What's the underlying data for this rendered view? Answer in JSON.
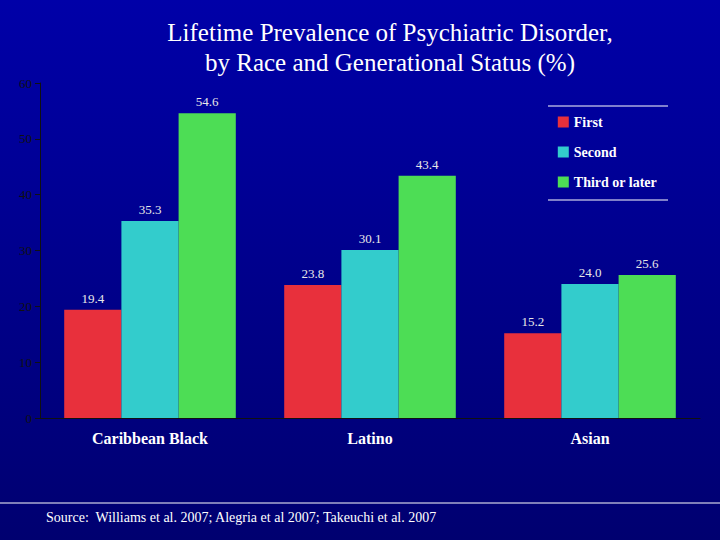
{
  "chart_data": {
    "type": "bar",
    "title": "Lifetime Prevalence of Psychiatric Disorder,\nby Race and Generational Status (%)",
    "source": "Source:  Williams et al. 2007; Alegria et al 2007; Takeuchi et al. 2007",
    "categories": [
      "Caribbean Black",
      "Latino",
      "Asian"
    ],
    "series": [
      {
        "name": "First",
        "color": "#e8303c",
        "values": [
          19.4,
          23.8,
          15.2
        ]
      },
      {
        "name": "Second",
        "color": "#33cccc",
        "values": [
          35.3,
          30.1,
          24.0
        ],
        "value_labels": [
          "35.3",
          "30.1",
          "24.0"
        ]
      },
      {
        "name": "Third or later",
        "color": "#4ddd55",
        "values": [
          54.6,
          43.4,
          25.6
        ]
      }
    ],
    "ylim": [
      0,
      60
    ],
    "yticks": [
      0,
      10,
      20,
      30,
      40,
      50,
      60
    ],
    "grid": false,
    "data_labels": true,
    "legend": "top-right"
  }
}
